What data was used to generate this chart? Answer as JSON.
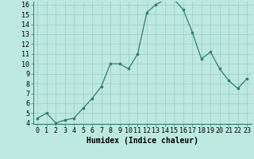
{
  "x": [
    0,
    1,
    2,
    3,
    4,
    5,
    6,
    7,
    8,
    9,
    10,
    11,
    12,
    13,
    14,
    15,
    16,
    17,
    18,
    19,
    20,
    21,
    22,
    23
  ],
  "y": [
    4.5,
    5.0,
    4.0,
    4.3,
    4.5,
    5.5,
    6.5,
    7.7,
    10.0,
    10.0,
    9.5,
    11.0,
    15.2,
    16.0,
    16.5,
    16.5,
    15.5,
    13.2,
    10.5,
    11.2,
    9.5,
    8.3,
    7.5,
    8.5
  ],
  "line_color": "#2d7f6e",
  "bg_color": "#bce8e0",
  "grid_color": "#99ccc4",
  "xlabel": "Humidex (Indice chaleur)",
  "ylim_min": 4,
  "ylim_max": 16,
  "xlim_min": 0,
  "xlim_max": 23,
  "yticks": [
    4,
    5,
    6,
    7,
    8,
    9,
    10,
    11,
    12,
    13,
    14,
    15,
    16
  ],
  "xticks": [
    0,
    1,
    2,
    3,
    4,
    5,
    6,
    7,
    8,
    9,
    10,
    11,
    12,
    13,
    14,
    15,
    16,
    17,
    18,
    19,
    20,
    21,
    22,
    23
  ],
  "axis_fontsize": 7,
  "tick_fontsize": 6,
  "xlabel_fontsize": 7,
  "marker_size": 2.0,
  "line_width": 0.9
}
